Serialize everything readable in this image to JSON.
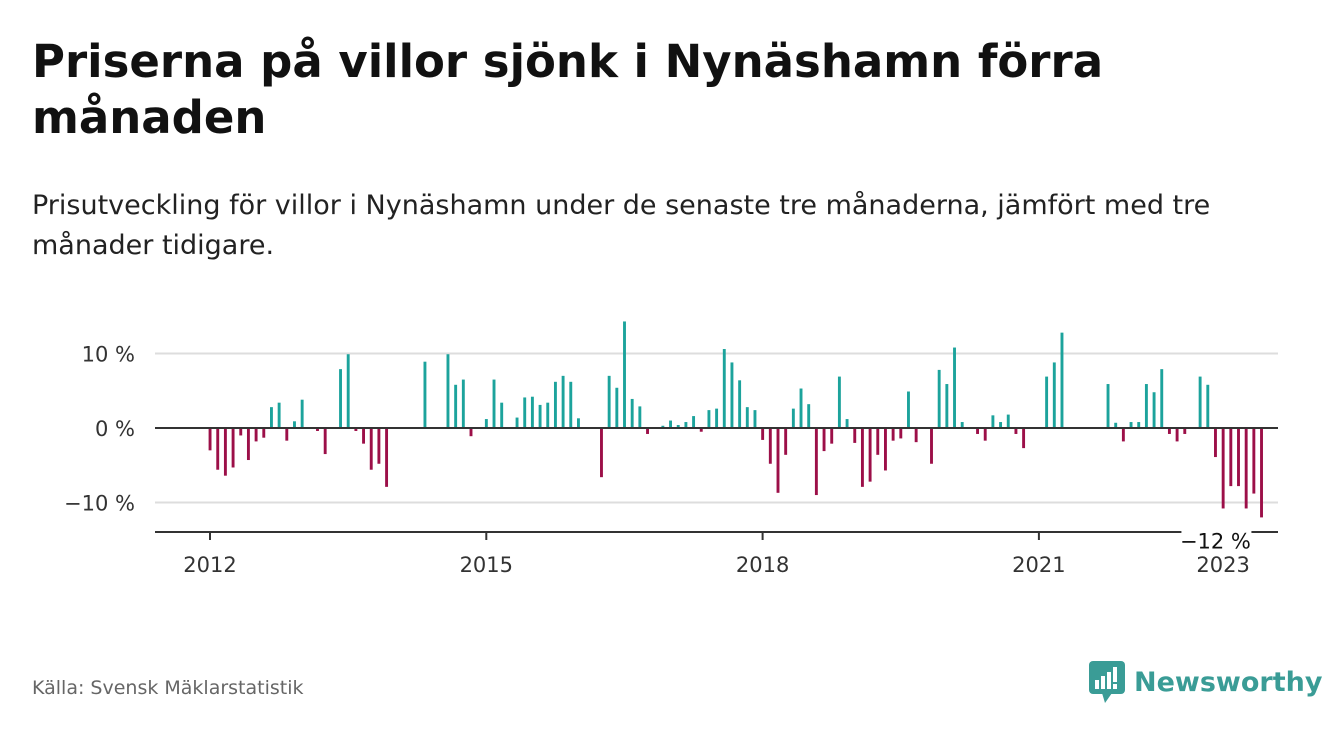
{
  "title": "Priserna på villor sjönk i Nynäshamn förra månaden",
  "subtitle": "Prisutveckling för villor i Nynäshamn under de senaste tre månaderna, jämfört med tre månader tidigare.",
  "source": "Källa: Svensk Mäklarstatistik",
  "brand": "Newsworthy",
  "colors": {
    "positive": "#1ca39c",
    "negative": "#9c0f48",
    "brand": "#3a9c96"
  },
  "chart_data": {
    "type": "bar",
    "title": "",
    "xlabel": "",
    "ylabel": "",
    "ylim": [
      -13.5,
      14.5
    ],
    "yticks": [
      10,
      0,
      -10
    ],
    "ytick_labels": [
      "10 %",
      "0 %",
      "−10 %"
    ],
    "xticks": [
      2012,
      2015,
      2018,
      2021,
      2023
    ],
    "grid": true,
    "legend": "none",
    "annotation": {
      "text": "−12 %",
      "x": "2022-12",
      "y": -12
    },
    "series": [
      {
        "start": "2012-01",
        "values": [
          -3,
          -5.6,
          -6.4,
          -5.3,
          -1,
          -4.3,
          -1.8,
          -1.3,
          2.8,
          3.4,
          -1.7,
          0.9,
          3.8,
          0,
          -0.4,
          -3.5,
          0,
          7.9,
          9.9,
          -0.4,
          -2.1,
          -5.6,
          -4.8,
          -7.9,
          0,
          0,
          0,
          0,
          8.9,
          0,
          0,
          9.9,
          5.8,
          6.5,
          -1.1,
          0,
          1.2,
          6.5,
          3.4,
          0,
          1.4,
          4.1,
          4.2,
          3.1,
          3.4,
          6.2,
          7,
          6.2,
          1.3,
          0,
          0,
          -6.6,
          7,
          5.4,
          14.3,
          3.9,
          2.9,
          -0.8,
          0,
          0.3,
          1,
          0.4,
          0.8,
          1.6,
          -0.5,
          2.4,
          2.6,
          10.6,
          8.8,
          6.4,
          2.8,
          2.4,
          -1.6,
          -4.8,
          -8.7,
          -3.6,
          2.6,
          5.3,
          3.2,
          -9,
          -3.1,
          -2.1,
          6.9,
          1.2,
          -2,
          -7.9,
          -7.2,
          -3.6,
          -5.7,
          -1.7,
          -1.4,
          4.9,
          -1.9,
          0,
          -4.8,
          7.8,
          5.9,
          10.8,
          0.8,
          0,
          -0.8,
          -1.7,
          1.7,
          0.8,
          1.8,
          -0.8,
          -2.7,
          0,
          0,
          6.9,
          8.8,
          12.8,
          0,
          0,
          0,
          0,
          0,
          5.9,
          0.7,
          -1.8,
          0.8,
          0.8,
          5.9,
          4.8,
          7.9,
          -0.8,
          -1.8,
          -0.8,
          0,
          6.9,
          5.8,
          -3.9,
          -10.8,
          -7.8,
          -7.8,
          -10.8,
          -8.8,
          -12
        ]
      }
    ]
  }
}
